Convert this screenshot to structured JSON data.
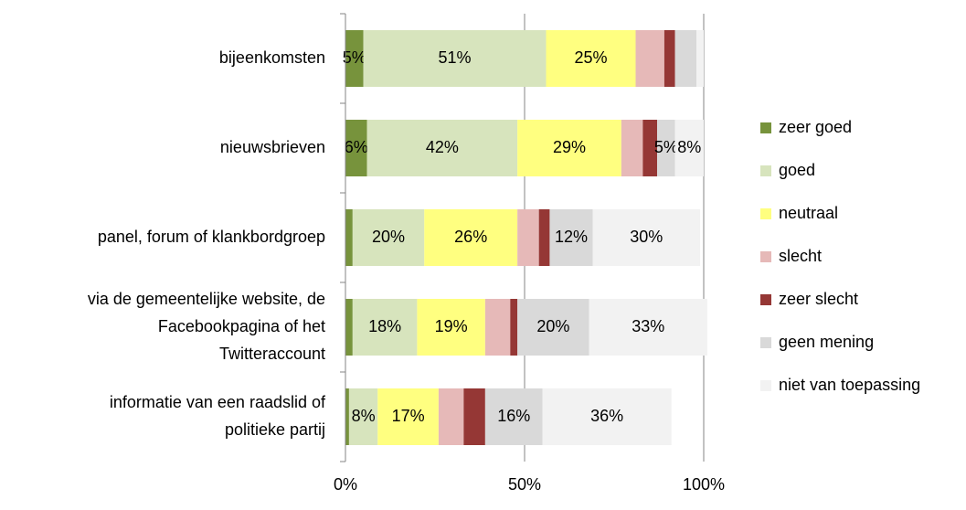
{
  "chart_data": {
    "type": "stacked-bar-horizontal",
    "categories": [
      [
        "bijeenkomsten"
      ],
      [
        "nieuwsbrieven"
      ],
      [
        "panel, forum of klankbordgroep"
      ],
      [
        "via de gemeentelijke website, de",
        "Facebookpagina of  het",
        "Twitteraccount"
      ],
      [
        "informatie van een raadslid of",
        "politieke partij"
      ]
    ],
    "series": [
      {
        "name": "zeer goed",
        "color": "#77933c",
        "values": [
          5,
          6,
          2,
          2,
          1
        ],
        "value_labels": [
          "5%",
          "6%",
          null,
          null,
          null
        ]
      },
      {
        "name": "goed",
        "color": "#d7e4bd",
        "values": [
          51,
          42,
          20,
          18,
          8
        ],
        "value_labels": [
          "51%",
          "42%",
          "20%",
          "18%",
          "8%"
        ]
      },
      {
        "name": "neutraal",
        "color": "#ffff80",
        "values": [
          25,
          29,
          26,
          19,
          17
        ],
        "value_labels": [
          "25%",
          "29%",
          "26%",
          "19%",
          "17%"
        ]
      },
      {
        "name": "slecht",
        "color": "#e6b9b8",
        "values": [
          8,
          6,
          6,
          7,
          7
        ],
        "value_labels": [
          null,
          null,
          null,
          null,
          null
        ]
      },
      {
        "name": "zeer slecht",
        "color": "#953735",
        "values": [
          3,
          4,
          3,
          2,
          6
        ],
        "value_labels": [
          null,
          null,
          null,
          null,
          null
        ]
      },
      {
        "name": "geen mening",
        "color": "#d9d9d9",
        "values": [
          6,
          5,
          12,
          20,
          16
        ],
        "value_labels": [
          null,
          "5%",
          "12%",
          "20%",
          "16%"
        ]
      },
      {
        "name": "niet van toepassing",
        "color": "#f2f2f2",
        "values": [
          2,
          8,
          30,
          33,
          36
        ],
        "value_labels": [
          null,
          "8%",
          "30%",
          "33%",
          "36%"
        ]
      }
    ],
    "xlim": [
      0,
      100
    ],
    "xticks": [
      {
        "value": 0,
        "label": "0%"
      },
      {
        "value": 50,
        "label": "50%"
      },
      {
        "value": 100,
        "label": "100%"
      }
    ],
    "grid": true,
    "legend": "right"
  }
}
